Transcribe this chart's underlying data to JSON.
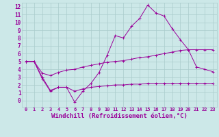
{
  "background_color": "#cce8e8",
  "grid_color": "#aacccc",
  "line_color": "#990099",
  "xlabel": "Windchill (Refroidissement éolien,°C)",
  "xlabel_fontsize": 6.5,
  "ylim": [
    -0.8,
    12.5
  ],
  "xlim": [
    -0.5,
    23.5
  ],
  "yticks": [
    0,
    1,
    2,
    3,
    4,
    5,
    6,
    7,
    8,
    9,
    10,
    11,
    12
  ],
  "xticks": [
    0,
    1,
    2,
    3,
    4,
    5,
    6,
    7,
    8,
    9,
    10,
    11,
    12,
    13,
    14,
    15,
    16,
    17,
    18,
    19,
    20,
    21,
    22,
    23
  ],
  "series1_x": [
    0,
    1,
    2,
    3,
    4,
    5,
    6,
    7,
    8,
    9,
    10,
    11,
    12,
    13,
    14,
    15,
    16,
    17,
    18,
    19,
    20,
    21,
    22,
    23
  ],
  "series1_y": [
    5.0,
    5.0,
    2.8,
    1.2,
    1.7,
    1.7,
    -0.2,
    1.2,
    2.2,
    3.6,
    5.8,
    8.3,
    8.0,
    9.5,
    10.5,
    12.2,
    11.2,
    10.8,
    9.2,
    7.8,
    6.5,
    4.3,
    4.0,
    3.7
  ],
  "series2_x": [
    0,
    1,
    2,
    3,
    4,
    5,
    6,
    7,
    8,
    9,
    10,
    11,
    12,
    13,
    14,
    15,
    16,
    17,
    18,
    19,
    20,
    21,
    22,
    23
  ],
  "series2_y": [
    5.0,
    5.0,
    3.5,
    3.2,
    3.6,
    3.9,
    4.0,
    4.3,
    4.5,
    4.7,
    4.9,
    5.0,
    5.1,
    5.3,
    5.5,
    5.6,
    5.8,
    6.0,
    6.2,
    6.4,
    6.5,
    6.5,
    6.5,
    6.5
  ],
  "series3_x": [
    0,
    1,
    2,
    3,
    4,
    5,
    6,
    7,
    8,
    9,
    10,
    11,
    12,
    13,
    14,
    15,
    16,
    17,
    18,
    19,
    20,
    21,
    22,
    23
  ],
  "series3_y": [
    5.0,
    5.0,
    3.0,
    1.3,
    1.7,
    1.7,
    1.2,
    1.5,
    1.7,
    1.8,
    1.9,
    2.0,
    2.0,
    2.1,
    2.1,
    2.2,
    2.2,
    2.2,
    2.2,
    2.2,
    2.2,
    2.2,
    2.2,
    2.2
  ]
}
